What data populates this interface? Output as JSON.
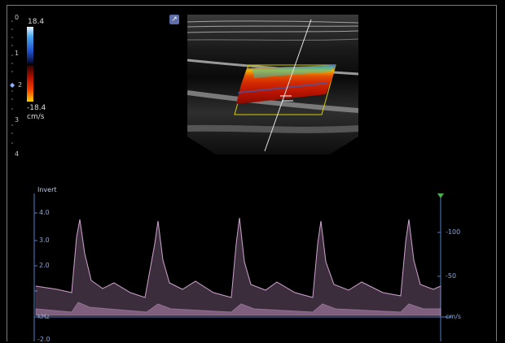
{
  "depth_scale": {
    "ticks": [
      "0",
      "1",
      "2",
      "3",
      "4"
    ],
    "focus_marker": "◆"
  },
  "color_scale": {
    "top": "18.4",
    "bottom": "-18.4",
    "unit": "cm/s"
  },
  "probe_icon": "probe-angle-icon",
  "spectral": {
    "invert_label": "Invert",
    "khz_ticks": [
      "4.0",
      "3.0",
      "2.0"
    ],
    "velocity_ticks": [
      "-100",
      "-50"
    ],
    "baseline_left": "kHz",
    "baseline_right": "cm/s",
    "below_baseline_tick": "-2.0",
    "waveform_color": "#d6a9d6",
    "scale_color": "#4f7fc6"
  }
}
